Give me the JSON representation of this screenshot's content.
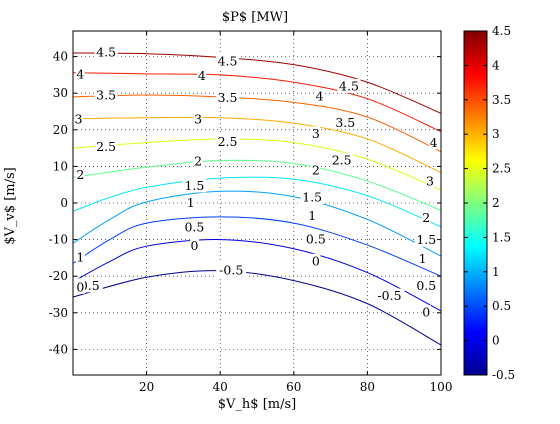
{
  "chart_data": {
    "type": "contour",
    "title": "$P$ [MW]",
    "xlabel": "$V_h$ [m/s]",
    "ylabel": "$V_v$ [m/s]",
    "xlim": [
      0,
      100
    ],
    "ylim": [
      -47,
      47
    ],
    "xticks": [
      20,
      40,
      60,
      80,
      100
    ],
    "yticks": [
      -40,
      -30,
      -20,
      -10,
      0,
      10,
      20,
      30,
      40
    ],
    "grid": true,
    "colorbar": {
      "range": [
        -0.5,
        4.5
      ],
      "ticks": [
        -0.5,
        0,
        0.5,
        1,
        1.5,
        2,
        2.5,
        3,
        3.5,
        4,
        4.5
      ],
      "tick_labels": [
        "-0.5",
        "0",
        "0.5",
        "1",
        "1.5",
        "2",
        "2.5",
        "3",
        "3.5",
        "4",
        "4.5"
      ],
      "colormap": "jet"
    },
    "contours": [
      {
        "level": -0.5,
        "label": "-0.5",
        "color": "#00008f",
        "points": [
          [
            0,
            -25.7
          ],
          [
            20,
            -20.3
          ],
          [
            40,
            -18.5
          ],
          [
            60,
            -21.2
          ],
          [
            80,
            -27.5
          ],
          [
            100,
            -38.8
          ]
        ],
        "labels": [
          {
            "x": 4,
            "y": -22.5
          },
          {
            "x": 43,
            "y": -18.3
          },
          {
            "x": 86,
            "y": -25.3
          }
        ]
      },
      {
        "level": 0,
        "label": "0",
        "color": "#0000e0",
        "points": [
          [
            0,
            -21.5
          ],
          [
            10,
            -16
          ],
          [
            20,
            -11.8
          ],
          [
            40,
            -10
          ],
          [
            60,
            -12.5
          ],
          [
            80,
            -19
          ],
          [
            100,
            -29.5
          ]
        ],
        "labels": [
          {
            "x": 2,
            "y": -22.9
          },
          {
            "x": 33,
            "y": -11.6
          },
          {
            "x": 66,
            "y": -15.8
          },
          {
            "x": 96,
            "y": -29.8
          }
        ]
      },
      {
        "level": 0.5,
        "label": "0.5",
        "color": "#0040ff",
        "points": [
          [
            0,
            -16.5
          ],
          [
            10,
            -10
          ],
          [
            20,
            -5.5
          ],
          [
            40,
            -3.8
          ],
          [
            60,
            -5.5
          ],
          [
            80,
            -11.5
          ],
          [
            100,
            -20
          ]
        ],
        "labels": [
          {
            "x": 33,
            "y": -6.6
          },
          {
            "x": 66,
            "y": -9.8
          },
          {
            "x": 96,
            "y": -22.5
          }
        ]
      },
      {
        "level": 1,
        "label": "1",
        "color": "#00a0ff",
        "points": [
          [
            0,
            -11
          ],
          [
            10,
            -4.5
          ],
          [
            20,
            0.3
          ],
          [
            40,
            3.2
          ],
          [
            60,
            1.7
          ],
          [
            80,
            -4.5
          ],
          [
            100,
            -14.5
          ]
        ],
        "labels": [
          {
            "x": 2,
            "y": -14.8
          },
          {
            "x": 32,
            "y": 0.2
          },
          {
            "x": 65,
            "y": -3.4
          },
          {
            "x": 95,
            "y": -15.2
          }
        ]
      },
      {
        "level": 1.5,
        "label": "1.5",
        "color": "#00e8ff",
        "points": [
          [
            0,
            -2.3
          ],
          [
            5,
            -0.3
          ],
          [
            10,
            1.5
          ],
          [
            20,
            4.3
          ],
          [
            40,
            6.8
          ],
          [
            60,
            6.5
          ],
          [
            80,
            2
          ],
          [
            100,
            -6.5
          ]
        ],
        "labels": [
          {
            "x": 33,
            "y": 4.8
          },
          {
            "x": 65,
            "y": 1.6
          },
          {
            "x": 96,
            "y": -10
          }
        ]
      },
      {
        "level": 2,
        "label": "2",
        "color": "#60ff90",
        "points": [
          [
            0,
            7
          ],
          [
            20,
            9.8
          ],
          [
            40,
            11.6
          ],
          [
            60,
            10.8
          ],
          [
            80,
            6
          ],
          [
            100,
            -2
          ]
        ],
        "labels": [
          {
            "x": 2,
            "y": 7.8
          },
          {
            "x": 34,
            "y": 11.5
          },
          {
            "x": 66,
            "y": 9
          },
          {
            "x": 96,
            "y": -4
          }
        ]
      },
      {
        "level": 2.5,
        "label": "2.5",
        "color": "#e0ff10",
        "points": [
          [
            0,
            15
          ],
          [
            20,
            16.5
          ],
          [
            40,
            17.5
          ],
          [
            60,
            16.5
          ],
          [
            80,
            12
          ],
          [
            100,
            3.5
          ]
        ],
        "labels": [
          {
            "x": 9,
            "y": 15.5
          },
          {
            "x": 42,
            "y": 16.8
          },
          {
            "x": 73,
            "y": 11.8
          }
        ]
      },
      {
        "level": 3,
        "label": "3",
        "color": "#ffb000",
        "points": [
          [
            0,
            23
          ],
          [
            20,
            23.3
          ],
          [
            40,
            23.3
          ],
          [
            60,
            21.8
          ],
          [
            80,
            17.5
          ],
          [
            100,
            8.3
          ]
        ],
        "labels": [
          {
            "x": 1.5,
            "y": 23
          },
          {
            "x": 34,
            "y": 23
          },
          {
            "x": 66,
            "y": 19
          },
          {
            "x": 97,
            "y": 6
          }
        ]
      },
      {
        "level": 3.5,
        "label": "3.5",
        "color": "#ff6000",
        "points": [
          [
            0,
            29
          ],
          [
            20,
            29.5
          ],
          [
            40,
            29
          ],
          [
            60,
            27.5
          ],
          [
            80,
            23.5
          ],
          [
            100,
            14
          ]
        ],
        "labels": [
          {
            "x": 9,
            "y": 29.5
          },
          {
            "x": 42,
            "y": 28.8
          },
          {
            "x": 74,
            "y": 22
          }
        ]
      },
      {
        "level": 4,
        "label": "4",
        "color": "#ff1a00",
        "points": [
          [
            0,
            35.6
          ],
          [
            20,
            35.3
          ],
          [
            40,
            35
          ],
          [
            60,
            33
          ],
          [
            80,
            28.5
          ],
          [
            100,
            19.5
          ]
        ],
        "labels": [
          {
            "x": 2,
            "y": 35.2
          },
          {
            "x": 35,
            "y": 34.8
          },
          {
            "x": 67,
            "y": 29.3
          },
          {
            "x": 98,
            "y": 16.6
          }
        ]
      },
      {
        "level": 4.5,
        "label": "4.5",
        "color": "#a00000",
        "points": [
          [
            0,
            41
          ],
          [
            20,
            40.8
          ],
          [
            40,
            39.8
          ],
          [
            60,
            37.8
          ],
          [
            80,
            33
          ],
          [
            100,
            24.5
          ]
        ],
        "labels": [
          {
            "x": 9,
            "y": 41.2
          },
          {
            "x": 42,
            "y": 38.8
          },
          {
            "x": 75,
            "y": 32
          }
        ]
      }
    ]
  }
}
